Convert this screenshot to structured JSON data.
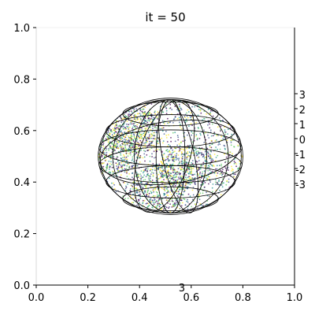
{
  "title": "it = 50",
  "chart_data": {
    "type": "scatter",
    "title": "it = 50",
    "xlabel": "",
    "ylabel": "",
    "xlim": [
      0.0,
      1.0
    ],
    "ylim": [
      0.0,
      1.0
    ],
    "grid": false,
    "x_ticks": [
      "0.0",
      "0.2",
      "0.4",
      "0.6",
      "0.8",
      "1.0"
    ],
    "y_ticks": [
      "0.0",
      "0.2",
      "0.4",
      "0.6",
      "0.8",
      "1.0"
    ],
    "z_ticks": [
      "3",
      "2",
      "1",
      "0",
      "-1",
      "-2",
      "-3"
    ],
    "bottom_label": "3",
    "sphere": {
      "center": [
        0.52,
        0.5
      ],
      "radius_x": 0.28,
      "radius_y": 0.22
    },
    "cluster_centers": [
      [
        0.38,
        0.6
      ],
      [
        0.58,
        0.46
      ],
      [
        0.48,
        0.38
      ],
      [
        0.3,
        0.52
      ]
    ],
    "colors": [
      "#440154",
      "#3b528b",
      "#21918c",
      "#5ec962",
      "#fde725"
    ]
  }
}
